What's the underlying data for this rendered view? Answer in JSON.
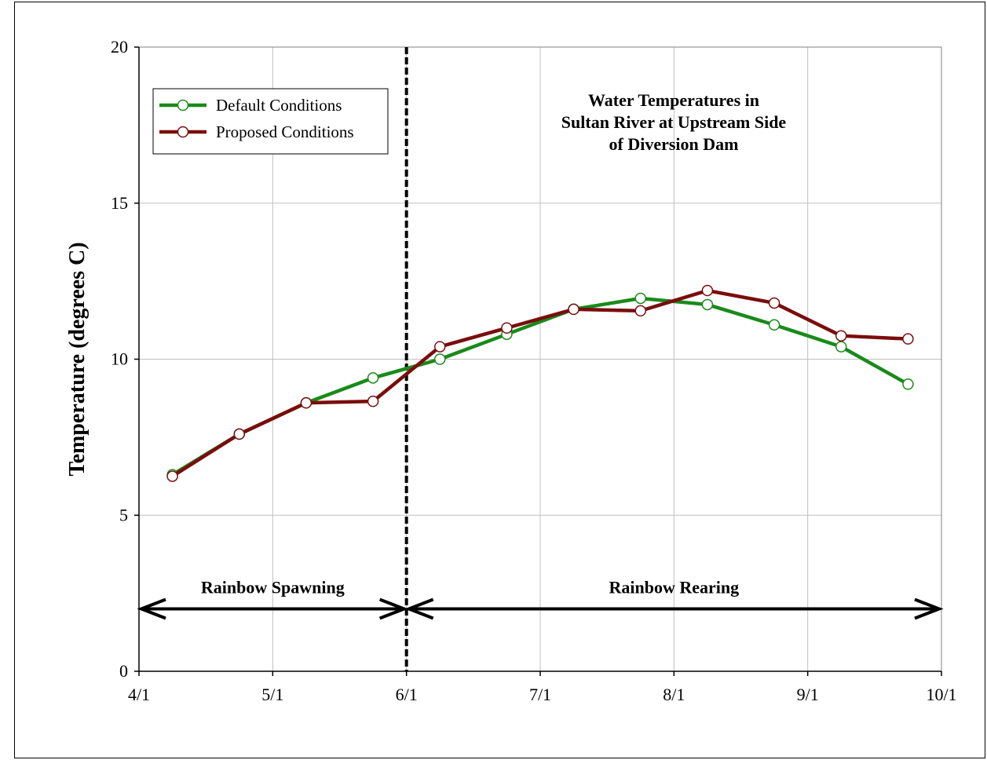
{
  "chart_data": {
    "type": "line",
    "title_lines": [
      "Water Temperatures in",
      "Sultan River at Upstream Side",
      "of Diversion Dam"
    ],
    "ylabel": "Temperature (degrees C)",
    "xlabel": "",
    "x_domain": [
      0,
      6
    ],
    "ylim": [
      0,
      20
    ],
    "y_ticks": [
      0,
      5,
      10,
      15,
      20
    ],
    "x_ticks": [
      {
        "v": 0,
        "label": "4/1"
      },
      {
        "v": 1,
        "label": "5/1"
      },
      {
        "v": 2,
        "label": "6/1"
      },
      {
        "v": 3,
        "label": "7/1"
      },
      {
        "v": 4,
        "label": "8/1"
      },
      {
        "v": 5,
        "label": "9/1"
      },
      {
        "v": 6,
        "label": "10/1"
      }
    ],
    "grid": true,
    "legend_position": "top-left",
    "series": [
      {
        "name": "Default Conditions",
        "color": "#1a8a1a",
        "x": [
          0.25,
          0.75,
          1.25,
          1.75,
          2.25,
          2.75,
          3.25,
          3.75,
          4.25,
          4.75,
          5.25,
          5.75
        ],
        "values": [
          6.3,
          7.6,
          8.6,
          9.4,
          10.0,
          10.8,
          11.6,
          11.95,
          11.75,
          11.1,
          10.4,
          9.2
        ]
      },
      {
        "name": "Proposed Conditions",
        "color": "#7a0d0d",
        "x": [
          0.25,
          0.75,
          1.25,
          1.75,
          2.25,
          2.75,
          3.25,
          3.75,
          4.25,
          4.75,
          5.25,
          5.75
        ],
        "values": [
          6.25,
          7.6,
          8.6,
          8.65,
          10.4,
          11.0,
          11.6,
          11.55,
          12.2,
          11.8,
          10.75,
          10.65
        ]
      }
    ],
    "annotations": {
      "divider_x": 2,
      "spawning": {
        "label": "Rainbow Spawning",
        "x_from": 0,
        "x_to": 2,
        "y": 2
      },
      "rearing": {
        "label": "Rainbow Rearing",
        "x_from": 2,
        "x_to": 6,
        "y": 2
      }
    }
  }
}
